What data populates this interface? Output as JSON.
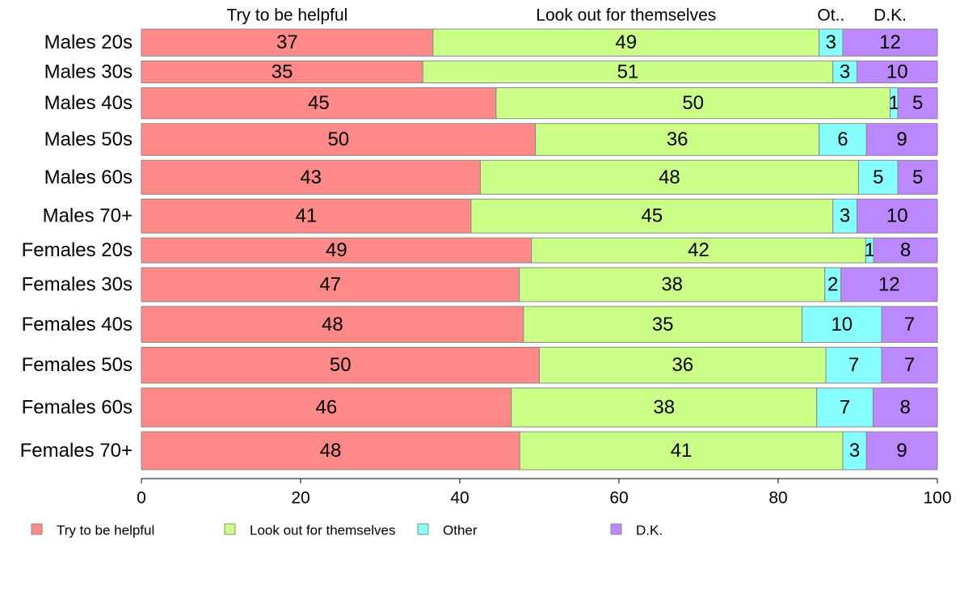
{
  "chart_data": {
    "type": "bar",
    "orientation": "horizontal",
    "stacked": true,
    "categories": [
      "Males 20s",
      "Males 30s",
      "Males 40s",
      "Males 50s",
      "Males 60s",
      "Males 70+",
      "Females 20s",
      "Females 30s",
      "Females 40s",
      "Females 50s",
      "Females 60s",
      "Females 70+"
    ],
    "row_weights": [
      1.35,
      1.1,
      1.55,
      1.6,
      1.7,
      1.7,
      1.25,
      1.7,
      1.8,
      1.8,
      1.95,
      1.9
    ],
    "series": [
      {
        "name": "Try to be helpful",
        "color": "#ff8888",
        "values": [
          37,
          35,
          45,
          50,
          43,
          41,
          49,
          47,
          48,
          50,
          46,
          48
        ]
      },
      {
        "name": "Look out for themselves",
        "color": "#ccff88",
        "values": [
          49,
          51,
          50,
          36,
          48,
          45,
          42,
          38,
          35,
          36,
          38,
          41
        ]
      },
      {
        "name": "Other",
        "color": "#88ffff",
        "values": [
          3,
          3,
          1,
          6,
          5,
          3,
          1,
          2,
          10,
          7,
          7,
          3
        ]
      },
      {
        "name": "D.K.",
        "color": "#bb88ff",
        "values": [
          12,
          10,
          5,
          9,
          5,
          10,
          8,
          12,
          7,
          7,
          8,
          9
        ]
      }
    ],
    "top_labels": [
      "Try to be helpful",
      "Look out for themselves",
      "Ot..",
      "D.K."
    ],
    "x_ticks": [
      0,
      20,
      40,
      60,
      80,
      100
    ],
    "xlim": [
      0,
      100
    ],
    "legend_labels": [
      "Try to be helpful",
      "Look out for themselves",
      "Other",
      "D.K."
    ],
    "legend_position": "bottom",
    "grid": false
  }
}
